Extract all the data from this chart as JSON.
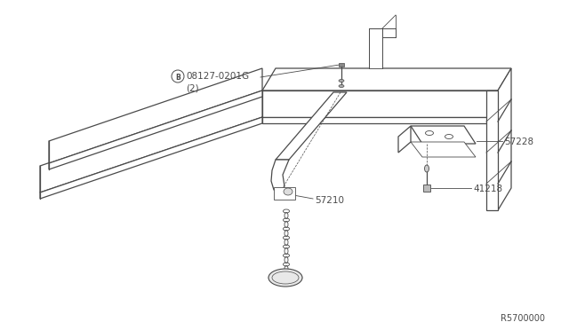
{
  "bg_color": "#ffffff",
  "line_color": "#4a4a4a",
  "ref_code": "R5700000",
  "font_size_label": 7.5,
  "font_size_ref": 7,
  "parts": {
    "bolt_part": "08127-0201G",
    "bolt_qty": "(2)",
    "hanger": "57210",
    "bracket": "57228",
    "nut": "41218"
  }
}
